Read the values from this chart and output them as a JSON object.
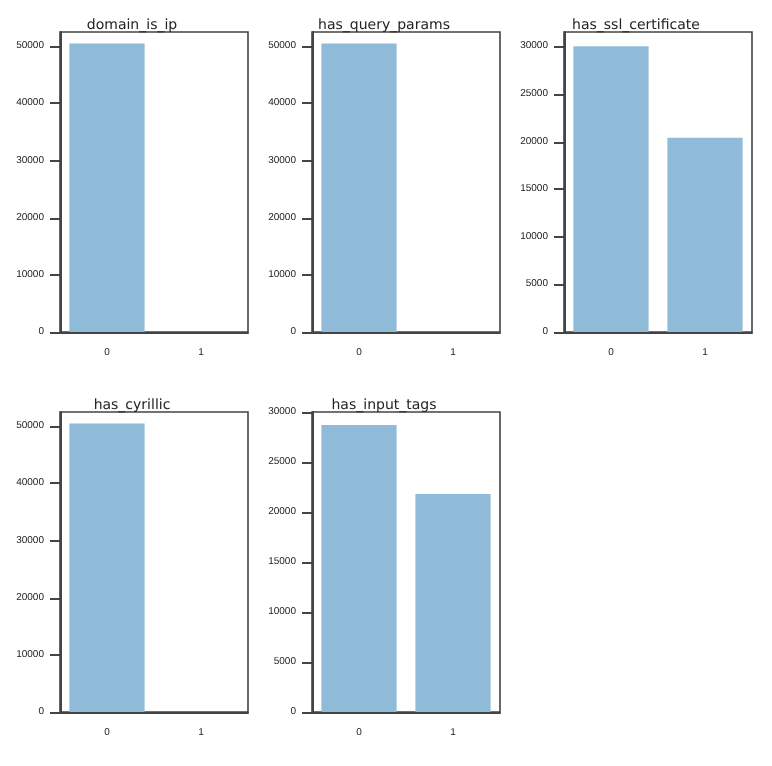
{
  "chart_data": [
    {
      "type": "bar",
      "title": "domain_is_ip",
      "categories": [
        "0",
        "1"
      ],
      "values": [
        50500,
        0
      ],
      "color": "#8fbbd9",
      "ylim": [
        0,
        52500
      ],
      "yticks": [
        0,
        10000,
        20000,
        30000,
        40000,
        50000
      ],
      "grid": false
    },
    {
      "type": "bar",
      "title": "has_query_params",
      "categories": [
        "0",
        "1"
      ],
      "values": [
        50500,
        0
      ],
      "color": "#8fbbd9",
      "ylim": [
        0,
        52500
      ],
      "yticks": [
        0,
        10000,
        20000,
        30000,
        40000,
        50000
      ],
      "grid": false
    },
    {
      "type": "bar",
      "title": "has_ssl_certificate",
      "categories": [
        "0",
        "1"
      ],
      "values": [
        30000,
        20400
      ],
      "color": "#8fbbd9",
      "ylim": [
        0,
        31500
      ],
      "yticks": [
        0,
        5000,
        10000,
        15000,
        20000,
        25000,
        30000
      ],
      "grid": false
    },
    {
      "type": "bar",
      "title": "has_cyrillic",
      "categories": [
        "0",
        "1"
      ],
      "values": [
        50500,
        0
      ],
      "color": "#8fbbd9",
      "ylim": [
        0,
        52500
      ],
      "yticks": [
        0,
        10000,
        20000,
        30000,
        40000,
        50000
      ],
      "grid": false
    },
    {
      "type": "bar",
      "title": "has_input_tags",
      "categories": [
        "0",
        "1"
      ],
      "values": [
        28700,
        21800
      ],
      "color": "#8fbbd9",
      "ylim": [
        0,
        30000
      ],
      "yticks": [
        0,
        5000,
        10000,
        15000,
        20000,
        25000,
        30000
      ],
      "grid": false
    }
  ]
}
